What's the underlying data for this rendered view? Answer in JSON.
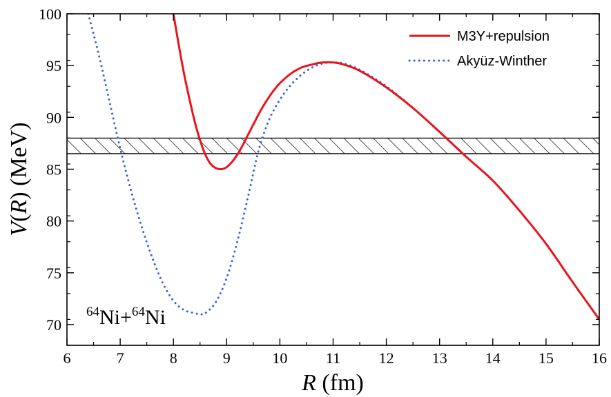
{
  "chart_data": {
    "type": "line",
    "xlabel": {
      "var": "R",
      "unit": " (fm)"
    },
    "ylabel": {
      "func": "V",
      "open": "(",
      "var": "R",
      "close": ")",
      "unit": " (MeV)"
    },
    "xlim": [
      6,
      16
    ],
    "ylim": [
      68,
      100
    ],
    "xticks": [
      6,
      7,
      8,
      9,
      10,
      11,
      12,
      13,
      14,
      15,
      16
    ],
    "yticks": [
      70,
      75,
      80,
      85,
      90,
      95,
      100
    ],
    "grid": false,
    "legend_position": "top-right",
    "annotation": {
      "mass1": "64",
      "sym1": "Ni+",
      "mass2": "64",
      "sym2": "Ni"
    },
    "band": {
      "y_range": [
        86.5,
        88.0
      ],
      "style": "diagonal-hatch"
    },
    "series": [
      {
        "name": "M3Y+repulsion",
        "color": "#e8141c",
        "style": "solid",
        "x": [
          8.0,
          8.1,
          8.2,
          8.3,
          8.4,
          8.5,
          8.6,
          8.7,
          8.8,
          8.9,
          9.0,
          9.1,
          9.2,
          9.3,
          9.4,
          9.5,
          9.6,
          9.7,
          9.8,
          9.9,
          10.0,
          10.2,
          10.4,
          10.6,
          10.8,
          11.0,
          11.2,
          11.5,
          12.0,
          12.5,
          13.0,
          13.5,
          14.0,
          14.5,
          15.0,
          15.5,
          16.0
        ],
        "y": [
          100.0,
          97.0,
          94.2,
          91.8,
          89.6,
          87.8,
          86.4,
          85.5,
          85.1,
          85.0,
          85.2,
          85.7,
          86.4,
          87.3,
          88.3,
          89.3,
          90.3,
          91.2,
          92.0,
          92.7,
          93.3,
          94.2,
          94.8,
          95.1,
          95.3,
          95.3,
          95.1,
          94.5,
          92.9,
          90.9,
          88.6,
          86.2,
          83.9,
          81.0,
          77.8,
          74.1,
          70.5
        ]
      },
      {
        "name": "Akyüz-Winther",
        "color": "#3b5ee0",
        "style": "dotted",
        "x": [
          6.4,
          6.6,
          6.8,
          7.0,
          7.2,
          7.4,
          7.6,
          7.8,
          8.0,
          8.2,
          8.4,
          8.5,
          8.6,
          8.8,
          9.0,
          9.2,
          9.4,
          9.6,
          9.8,
          10.0,
          10.2,
          10.4,
          10.6,
          10.8,
          11.0,
          11.2,
          11.5,
          12.0,
          12.5,
          13.0,
          13.5,
          14.0,
          14.5,
          15.0,
          15.5,
          16.0
        ],
        "y": [
          100.0,
          96.0,
          91.5,
          87.0,
          83.0,
          79.5,
          76.5,
          74.0,
          72.3,
          71.4,
          71.1,
          71.0,
          71.1,
          72.2,
          74.5,
          78.0,
          82.3,
          86.8,
          89.8,
          91.7,
          93.1,
          94.1,
          94.8,
          95.2,
          95.3,
          95.2,
          94.6,
          93.0,
          90.9,
          88.6,
          86.2,
          83.9,
          81.0,
          77.8,
          74.1,
          70.5
        ]
      }
    ]
  }
}
